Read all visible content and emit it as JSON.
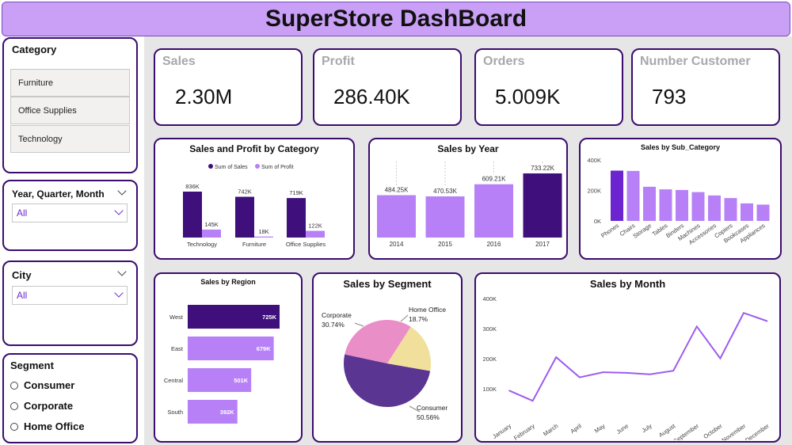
{
  "title": "SuperStore DashBoard",
  "colors": {
    "dark_purple": "#3f0f7c",
    "light_purple": "#b780f7",
    "line": "#9d5cf0",
    "pie_consumer": "#5a3591",
    "pie_corporate": "#ea8ec8",
    "pie_home": "#f0e09c"
  },
  "slicers": {
    "category": {
      "title": "Category",
      "items": [
        "Furniture",
        "Office Supplies",
        "Technology"
      ]
    },
    "year": {
      "title": "Year, Quarter, Month",
      "value": "All"
    },
    "city": {
      "title": "City",
      "value": "All"
    },
    "segment": {
      "title": "Segment",
      "options": [
        "Consumer",
        "Corporate",
        "Home Office"
      ]
    }
  },
  "kpis": [
    {
      "label": "Sales",
      "value": "2.30M"
    },
    {
      "label": "Profit",
      "value": "286.40K"
    },
    {
      "label": "Orders",
      "value": "5.009K"
    },
    {
      "label": "Number Customer",
      "value": "793"
    }
  ],
  "chart_data": [
    {
      "type": "bar",
      "title": "Sales and Profit by Category",
      "categories": [
        "Technology",
        "Furniture",
        "Office Supplies"
      ],
      "series": [
        {
          "name": "Sum of Sales",
          "values": [
            836,
            742,
            719
          ],
          "labels": [
            "836K",
            "742K",
            "719K"
          ]
        },
        {
          "name": "Sum of Profit",
          "values": [
            145,
            18,
            122
          ],
          "labels": [
            "145K",
            "18K",
            "122K"
          ]
        }
      ]
    },
    {
      "type": "bar",
      "title": "Sales by Year",
      "categories": [
        "2014",
        "2015",
        "2016",
        "2017"
      ],
      "values": [
        484.25,
        470.53,
        609.21,
        733.22
      ],
      "labels": [
        "484.25K",
        "470.53K",
        "609.21K",
        "733.22K"
      ]
    },
    {
      "type": "bar",
      "title": "Sales by Sub_Category",
      "categories": [
        "Phones",
        "Chairs",
        "Storage",
        "Tables",
        "Binders",
        "Machines",
        "Accessories",
        "Copiers",
        "Bookcases",
        "Appliances"
      ],
      "values": [
        330,
        328,
        224,
        207,
        203,
        189,
        167,
        150,
        115,
        107
      ],
      "yticks": [
        "0K",
        "200K",
        "400K"
      ],
      "ylim": [
        0,
        400
      ]
    },
    {
      "type": "bar",
      "title": "Sales by Region",
      "categories": [
        "West",
        "East",
        "Central",
        "South"
      ],
      "values": [
        725,
        679,
        501,
        392
      ],
      "labels": [
        "725K",
        "679K",
        "501K",
        "392K"
      ]
    },
    {
      "type": "pie",
      "title": "Sales by Segment",
      "slices": [
        {
          "name": "Consumer",
          "value": 50.56,
          "label": "50.56%"
        },
        {
          "name": "Corporate",
          "value": 30.74,
          "label": "30.74%"
        },
        {
          "name": "Home Office",
          "value": 18.7,
          "label": "18.7%"
        }
      ]
    },
    {
      "type": "line",
      "title": "Sales by Month",
      "categories": [
        "January",
        "February",
        "March",
        "April",
        "May",
        "June",
        "July",
        "August",
        "September",
        "October",
        "November",
        "December"
      ],
      "values": [
        94,
        60,
        205,
        138,
        155,
        153,
        148,
        160,
        307,
        201,
        352,
        325
      ],
      "yticks": [
        "100K",
        "200K",
        "300K",
        "400K"
      ],
      "ylim": [
        0,
        420
      ]
    }
  ]
}
